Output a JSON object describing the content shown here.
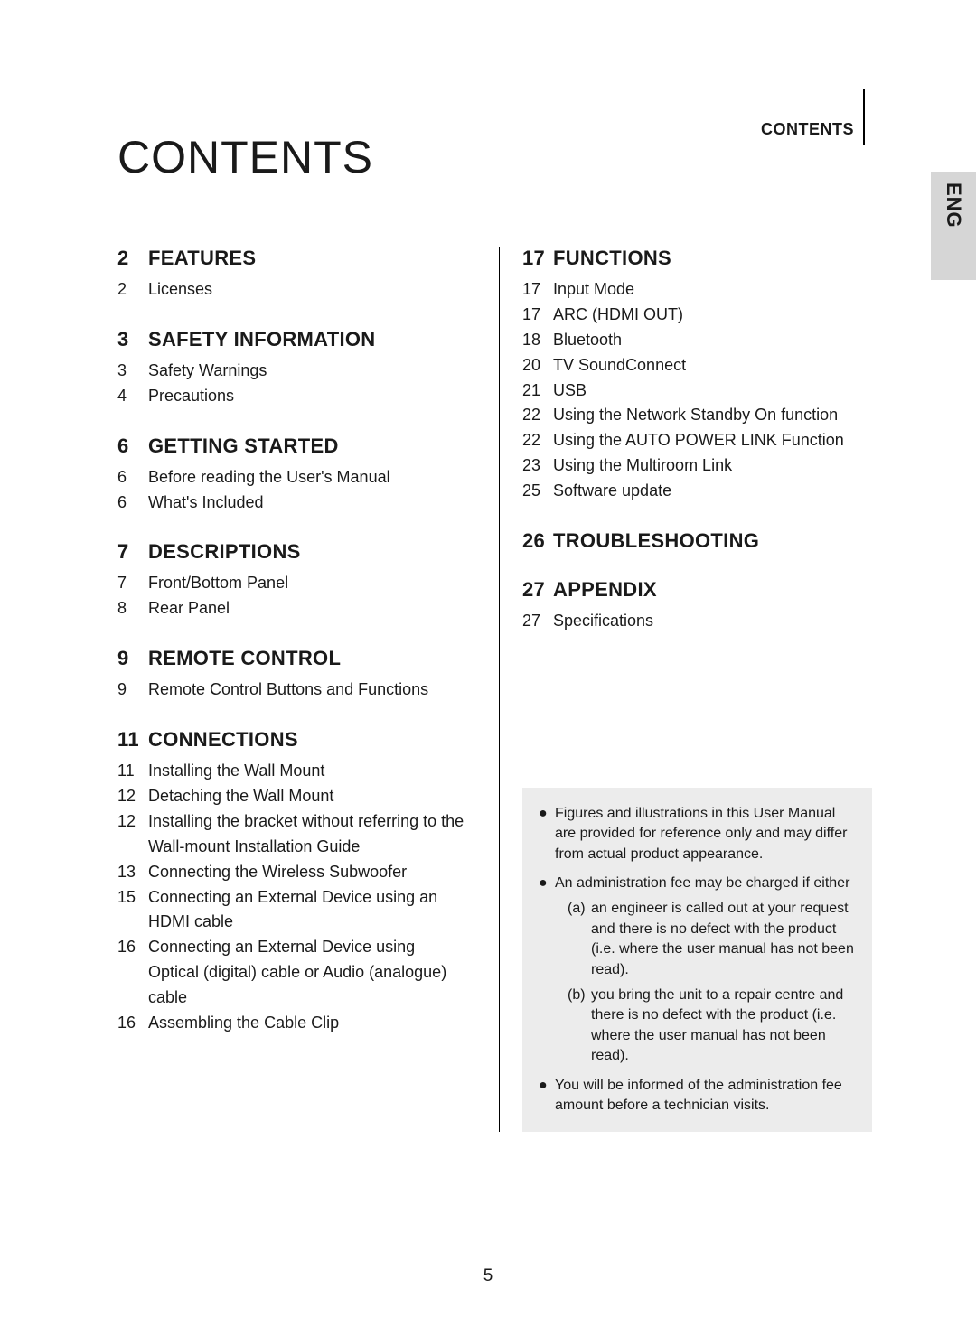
{
  "header_label": "CONTENTS",
  "lang_tab": "ENG",
  "title": "CONTENTS",
  "page_number": "5",
  "left_sections": [
    {
      "page": "2",
      "title": "FEATURES",
      "items": [
        {
          "page": "2",
          "label": "Licenses"
        }
      ]
    },
    {
      "page": "3",
      "title": "SAFETY INFORMATION",
      "items": [
        {
          "page": "3",
          "label": "Safety Warnings"
        },
        {
          "page": "4",
          "label": "Precautions"
        }
      ]
    },
    {
      "page": "6",
      "title": "GETTING STARTED",
      "items": [
        {
          "page": "6",
          "label": "Before reading the User's Manual"
        },
        {
          "page": "6",
          "label": "What's Included"
        }
      ]
    },
    {
      "page": "7",
      "title": "DESCRIPTIONS",
      "items": [
        {
          "page": "7",
          "label": "Front/Bottom Panel"
        },
        {
          "page": "8",
          "label": "Rear Panel"
        }
      ]
    },
    {
      "page": "9",
      "title": "REMOTE CONTROL",
      "items": [
        {
          "page": "9",
          "label": "Remote Control Buttons and Functions"
        }
      ]
    },
    {
      "page": "11",
      "title": "CONNECTIONS",
      "items": [
        {
          "page": "11",
          "label": "Installing the Wall Mount"
        },
        {
          "page": "12",
          "label": "Detaching the Wall Mount"
        },
        {
          "page": "12",
          "label": "Installing the bracket without referring to the Wall-mount Installation Guide"
        },
        {
          "page": "13",
          "label": "Connecting the Wireless Subwoofer"
        },
        {
          "page": "15",
          "label": "Connecting an External Device using an HDMI cable"
        },
        {
          "page": "16",
          "label": "Connecting an External Device using Optical (digital) cable or Audio (analogue) cable"
        },
        {
          "page": "16",
          "label": "Assembling the Cable Clip"
        }
      ]
    }
  ],
  "right_sections": [
    {
      "page": "17",
      "title": "FUNCTIONS",
      "items": [
        {
          "page": "17",
          "label": "Input Mode"
        },
        {
          "page": "17",
          "label": "ARC (HDMI OUT)"
        },
        {
          "page": "18",
          "label": "Bluetooth"
        },
        {
          "page": "20",
          "label": "TV SoundConnect"
        },
        {
          "page": "21",
          "label": "USB"
        },
        {
          "page": "22",
          "label": "Using the Network Standby On function"
        },
        {
          "page": "22",
          "label": "Using the AUTO POWER LINK Function"
        },
        {
          "page": "23",
          "label": "Using the Multiroom Link"
        },
        {
          "page": "25",
          "label": "Software update"
        }
      ]
    },
    {
      "page": "26",
      "title": "TROUBLESHOOTING",
      "items": []
    },
    {
      "page": "27",
      "title": "APPENDIX",
      "items": [
        {
          "page": "27",
          "label": "Specifications"
        }
      ]
    }
  ],
  "notes": [
    {
      "text": "Figures and illustrations in this User Manual are provided for reference only and may differ from actual product appearance.",
      "subs": []
    },
    {
      "text": "An administration fee may be charged if either",
      "subs": [
        {
          "l": "(a)",
          "t": "an engineer is called out at your request and there is no defect with the product (i.e. where the user manual has not been read)."
        },
        {
          "l": "(b)",
          "t": "you bring the unit to a repair centre and there is no defect with the product (i.e. where the user manual has not been read)."
        }
      ]
    },
    {
      "text": "You will be informed of the administration fee amount before a technician visits.",
      "subs": []
    }
  ],
  "colors": {
    "background": "#ffffff",
    "text": "#1a1a1a",
    "tab_bg": "#d6d6d6",
    "notes_bg": "#ececec"
  }
}
